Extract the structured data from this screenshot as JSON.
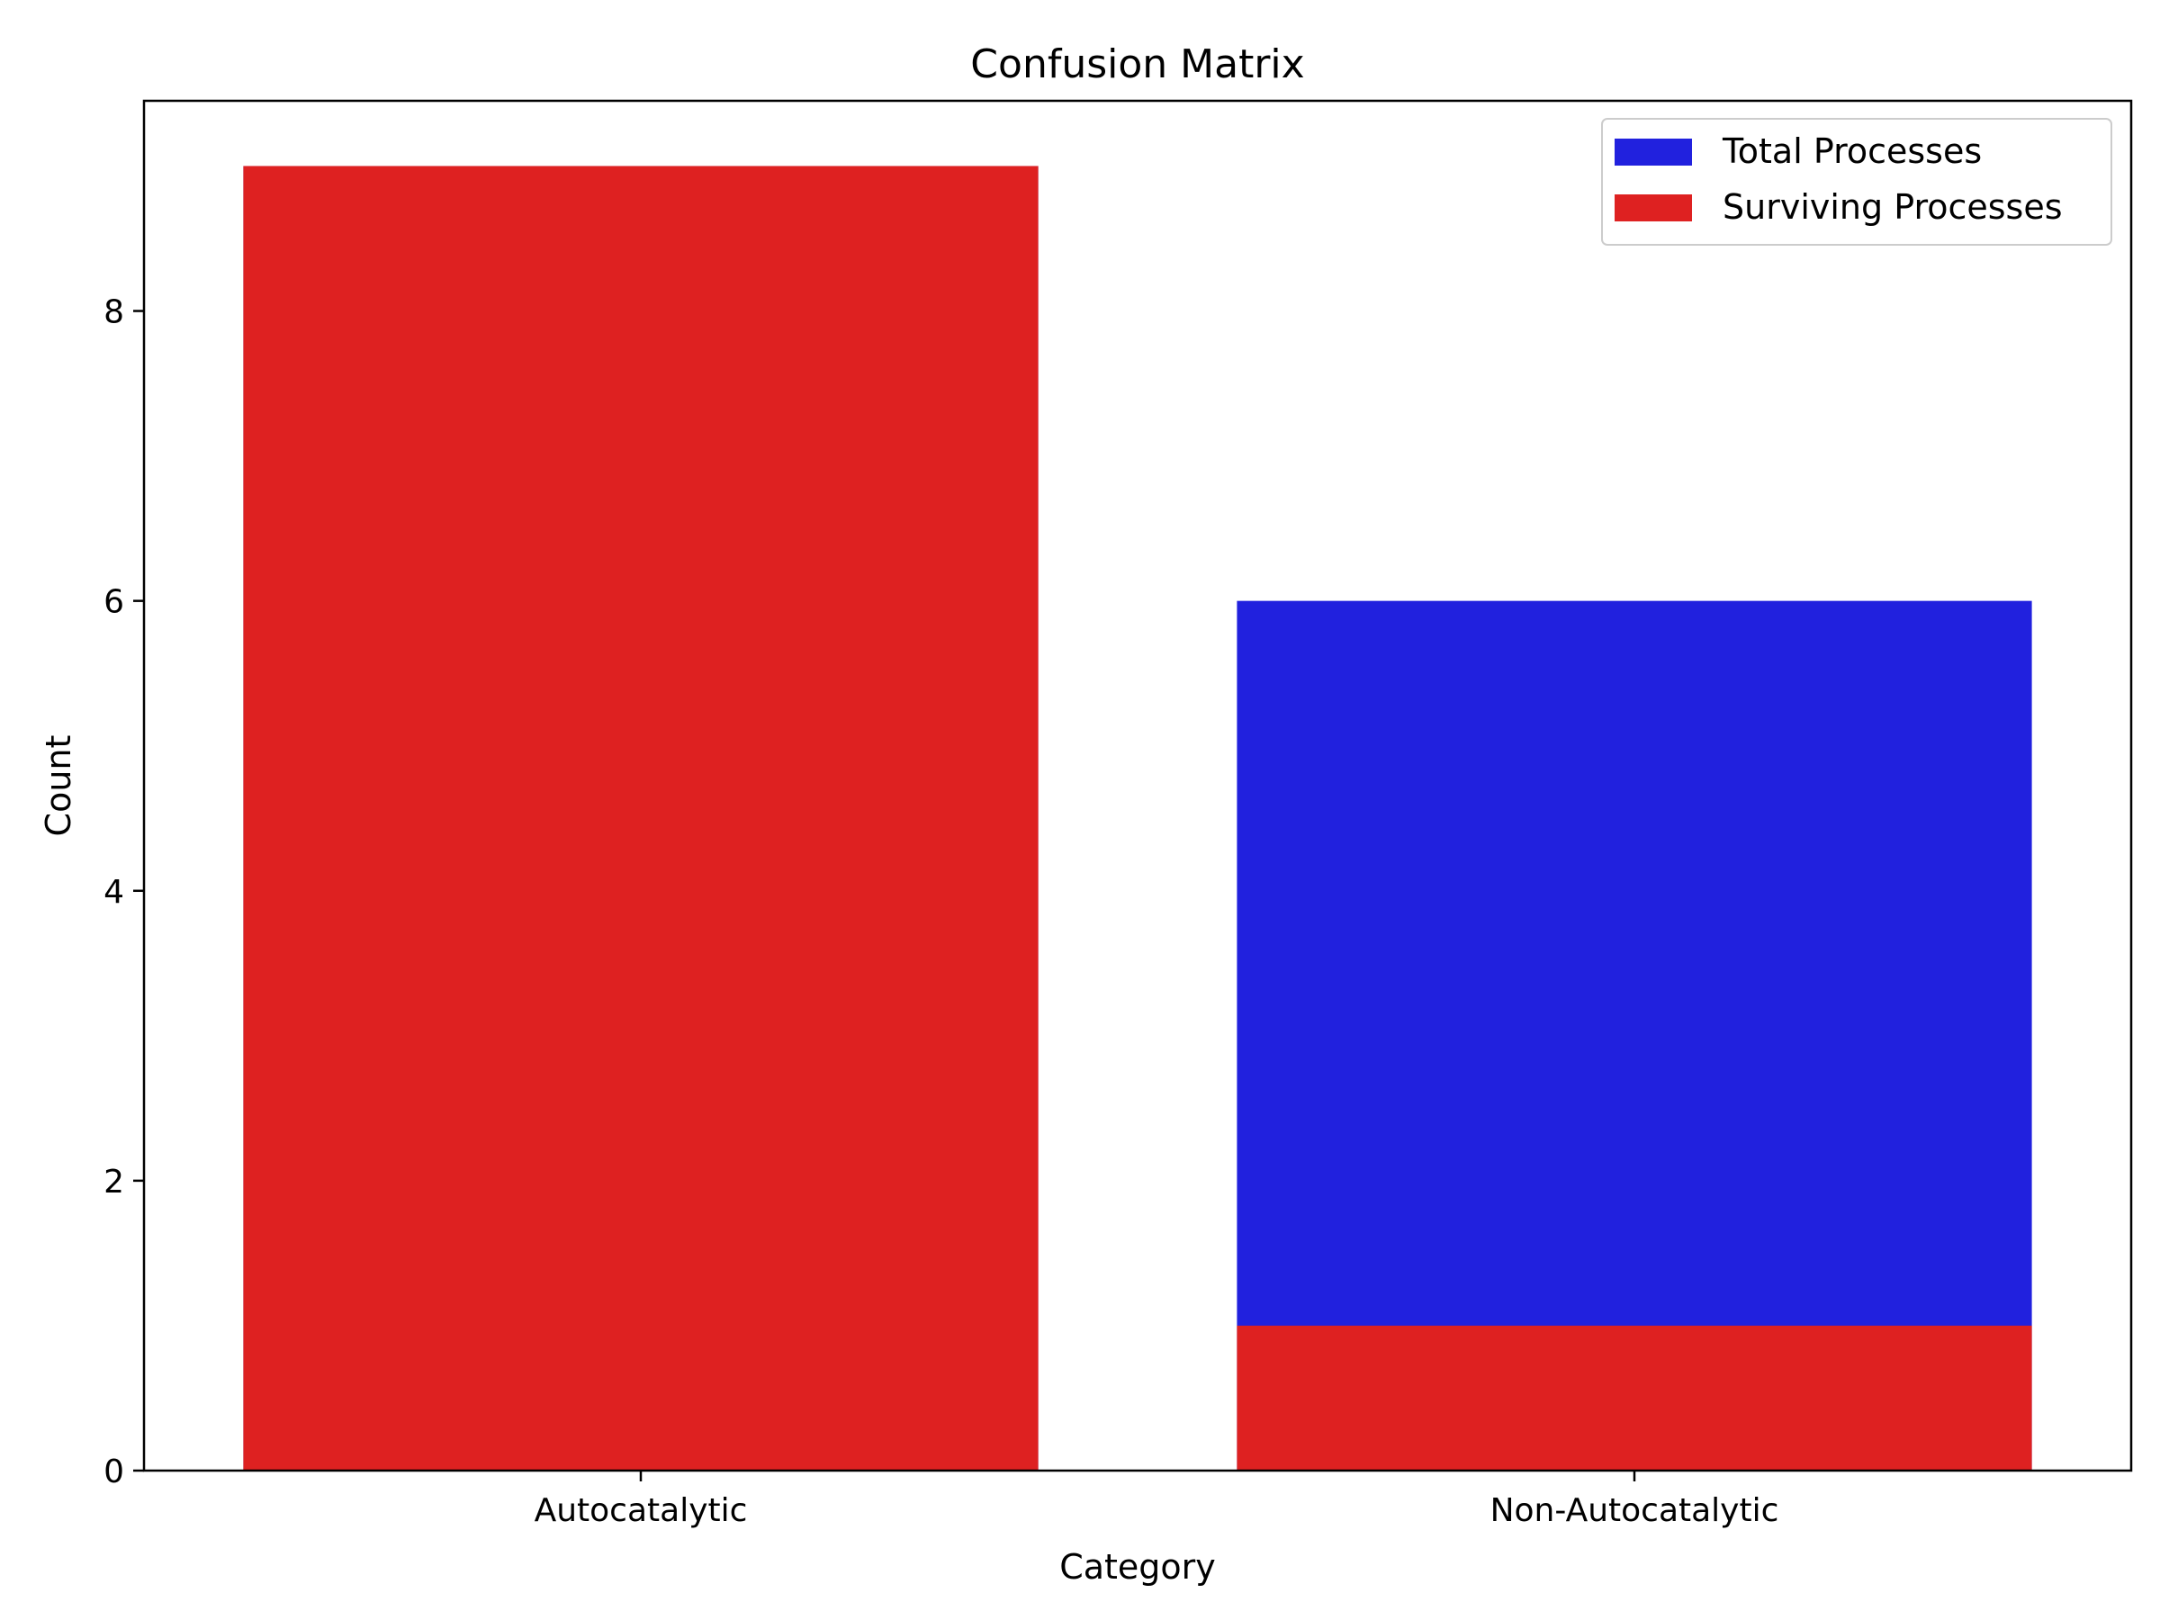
{
  "chart_data": {
    "type": "bar",
    "title": "Confusion Matrix",
    "xlabel": "Category",
    "ylabel": "Count",
    "categories": [
      "Autocatalytic",
      "Non-Autocatalytic"
    ],
    "series": [
      {
        "name": "Total Processes",
        "values": [
          9,
          6
        ],
        "color": "#2121de"
      },
      {
        "name": "Surviving Processes",
        "values": [
          9,
          1
        ],
        "color": "#de2121"
      }
    ],
    "ylim": [
      0,
      9.45
    ],
    "yticks": [
      0,
      2,
      4,
      6,
      8
    ],
    "grid": false,
    "legend_position": "top-right"
  }
}
